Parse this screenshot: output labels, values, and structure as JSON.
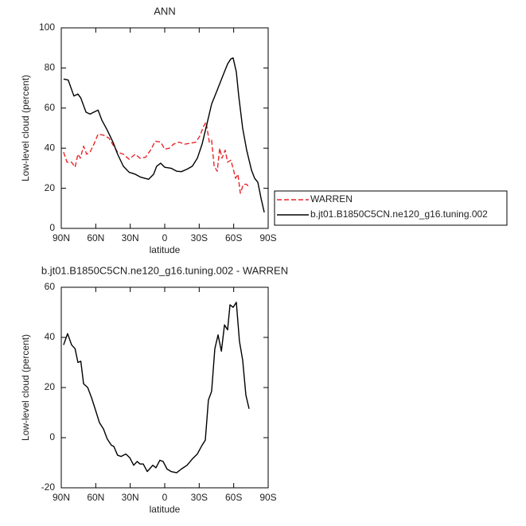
{
  "chart_data": [
    {
      "type": "line",
      "title": "ANN",
      "xlabel": "latitude",
      "ylabel": "Low-level cloud (percent)",
      "xlim": [
        90,
        -90
      ],
      "ylim": [
        0,
        100
      ],
      "xticks": [
        {
          "value": 90,
          "label": "90N"
        },
        {
          "value": 60,
          "label": "60N"
        },
        {
          "value": 30,
          "label": "30N"
        },
        0,
        {
          "value": -30,
          "label": "30S"
        },
        {
          "value": -60,
          "label": "60S"
        },
        {
          "value": -90,
          "label": "90S"
        }
      ],
      "yticks": [
        0,
        20,
        40,
        60,
        80,
        100
      ],
      "legend": "right",
      "series": [
        {
          "name": "WARREN",
          "color": "#e8262b",
          "dash": true,
          "x": [
            88,
            85,
            81,
            78,
            75.5,
            73.4,
            70.6,
            67.9,
            65,
            61.6,
            58,
            53.3,
            48.5,
            44.3,
            41,
            36,
            31,
            25.6,
            21.5,
            16.6,
            11.8,
            8.3,
            3.5,
            0,
            -4,
            -7.6,
            -12.5,
            -17.3,
            -22.8,
            -27,
            -30.5,
            -33.9,
            -36,
            -38.8,
            -40.8,
            -43,
            -45.7,
            -47.8,
            -49.8,
            -52.6,
            -54.7,
            -57.5,
            -59.5,
            -61.6,
            -63.7,
            -65.8,
            -68.5,
            -71.3,
            -73.4
          ],
          "values": [
            38,
            33,
            33,
            30.5,
            37,
            35,
            41,
            37,
            38,
            42,
            47,
            46.5,
            45,
            41,
            38,
            37,
            34.5,
            37,
            35,
            35.5,
            39.5,
            43.5,
            43,
            39.5,
            40,
            42,
            43,
            42,
            42.5,
            43,
            46,
            51,
            53,
            43,
            44,
            31,
            28.5,
            40,
            35,
            39,
            33,
            34,
            30,
            25,
            27,
            17.5,
            22,
            22,
            20.5
          ]
        },
        {
          "name": "b.jt01.B1850C5CN.ne120_g16.tuning.002",
          "color": "#000000",
          "dash": false,
          "x": [
            88,
            84,
            79,
            75.5,
            73,
            68.5,
            65,
            61.6,
            58,
            54.7,
            50,
            45,
            41,
            36,
            31,
            25.6,
            20.8,
            14,
            9.7,
            7,
            3.5,
            0,
            -5.5,
            -10.4,
            -14.5,
            -19.4,
            -24,
            -28.4,
            -32.5,
            -36.7,
            -40.8,
            -45.7,
            -50.5,
            -54.7,
            -57.5,
            -59.5,
            -62.3,
            -64.4,
            -67.8,
            -71.3,
            -75.5,
            -78.2,
            -81,
            -83.8,
            -86.6
          ],
          "values": [
            74.5,
            74,
            66,
            67,
            65,
            58,
            57,
            58,
            59,
            54,
            49,
            43,
            37,
            31,
            28,
            27,
            25.5,
            24.5,
            27,
            31,
            32.5,
            30.5,
            30,
            28.5,
            28.3,
            29.5,
            31,
            35,
            42,
            52,
            62,
            69,
            76,
            82,
            84.5,
            85,
            78,
            66,
            50,
            39,
            29,
            25,
            23,
            15,
            8
          ]
        }
      ]
    },
    {
      "type": "line",
      "title": "b.jt01.B1850C5CN.ne120_g16.tuning.002 - WARREN",
      "xlabel": "latitude",
      "ylabel": "Low-level cloud (percent)",
      "xlim": [
        90,
        -90
      ],
      "ylim": [
        -20,
        60
      ],
      "xticks": [
        {
          "value": 90,
          "label": "90N"
        },
        {
          "value": 60,
          "label": "60N"
        },
        {
          "value": 30,
          "label": "30N"
        },
        0,
        {
          "value": -30,
          "label": "30S"
        },
        {
          "value": -60,
          "label": "60S"
        },
        {
          "value": -90,
          "label": "90S"
        }
      ],
      "yticks": [
        -20,
        0,
        20,
        40,
        60
      ],
      "series": [
        {
          "color": "#000000",
          "dash": false,
          "x": [
            88,
            84.5,
            81,
            78,
            75.5,
            73,
            70.6,
            67,
            63.7,
            60.2,
            56.8,
            53.3,
            50,
            46.4,
            44.3,
            41,
            38,
            33.8,
            30.4,
            27,
            24,
            21.5,
            18.7,
            15.2,
            13.2,
            10.4,
            7.6,
            4.2,
            1.4,
            -2,
            -5.5,
            -10.4,
            -14.5,
            -19.4,
            -24,
            -28.4,
            -32.5,
            -35.3,
            -38,
            -40.8,
            -43.6,
            -46.4,
            -49.3,
            -52,
            -54.7,
            -56.8,
            -59.5,
            -62.3,
            -65,
            -67.8,
            -70.6,
            -73.4
          ],
          "values": [
            37,
            41.5,
            37,
            35.5,
            30,
            30.5,
            21.5,
            20,
            16,
            11,
            6,
            3.5,
            -0.5,
            -3,
            -3.5,
            -7,
            -7.5,
            -6.5,
            -8,
            -11,
            -9.5,
            -10.5,
            -10.5,
            -13.5,
            -12.5,
            -11,
            -12,
            -9,
            -9.5,
            -12.5,
            -13.5,
            -14,
            -12.5,
            -11,
            -8.5,
            -6.5,
            -3,
            -1,
            15,
            18.5,
            35.5,
            41,
            34.5,
            45,
            43,
            53,
            52,
            54,
            38.5,
            31,
            17,
            11.5
          ]
        }
      ]
    }
  ]
}
